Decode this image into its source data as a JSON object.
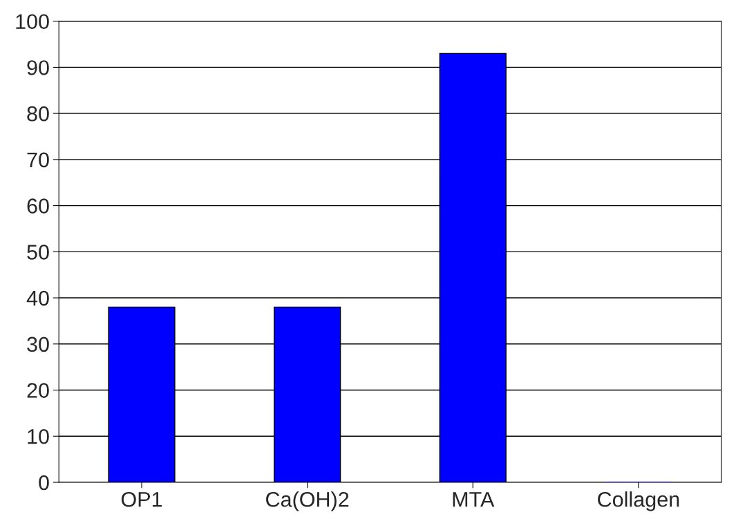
{
  "chart_data": {
    "type": "bar",
    "categories": [
      "OP1",
      "Ca(OH)2",
      "MTA",
      "Collagen"
    ],
    "values": [
      38,
      38,
      93,
      0
    ],
    "color": "#0000ff",
    "ylim": [
      0,
      100
    ],
    "yticks": [
      0,
      10,
      20,
      30,
      40,
      50,
      60,
      70,
      80,
      90,
      100
    ],
    "grid": "y"
  }
}
